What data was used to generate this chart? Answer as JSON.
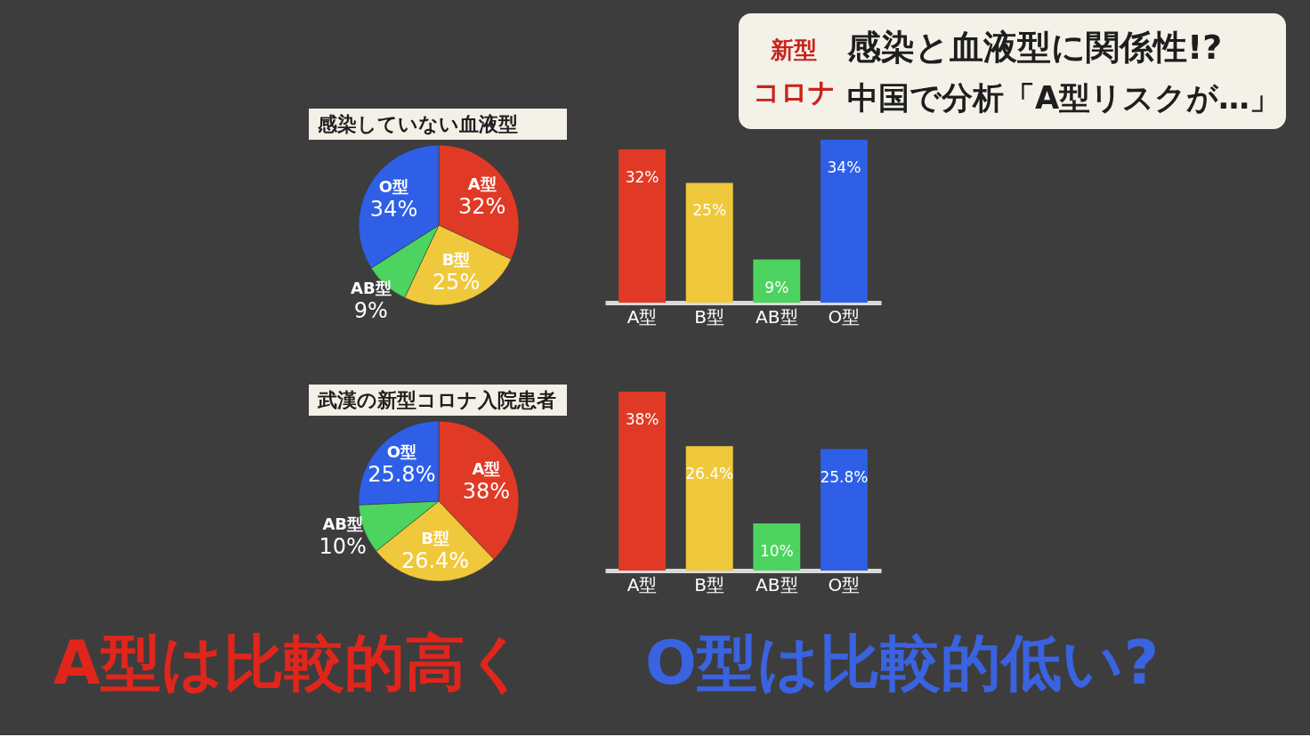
{
  "chart_data": [
    {
      "type": "other",
      "title": "感染と血液型に関係性!?",
      "subtitle": "中国で分析「A型リスクが…」",
      "annotations": [
        "新型",
        "コロナ"
      ]
    },
    {
      "type": "pie",
      "title": "感染していない血液型",
      "categories": [
        "A型",
        "B型",
        "AB型",
        "O型"
      ],
      "values": [
        32,
        25,
        9,
        34
      ],
      "colors": [
        "#e03a26",
        "#f0c83c",
        "#4dd35f",
        "#2e5fe6"
      ],
      "value_labels": [
        "32%",
        "25%",
        "9%",
        "34%"
      ]
    },
    {
      "type": "bar",
      "categories": [
        "A型",
        "B型",
        "AB型",
        "O型"
      ],
      "values": [
        32,
        25,
        9,
        34
      ],
      "colors": [
        "#e03a26",
        "#f0c83c",
        "#4dd35f",
        "#2e5fe6"
      ],
      "value_labels": [
        "32%",
        "25%",
        "9%",
        "34%"
      ]
    },
    {
      "type": "pie",
      "title": "武漢の新型コロナ入院患者",
      "categories": [
        "A型",
        "B型",
        "AB型",
        "O型"
      ],
      "values": [
        38,
        26.4,
        10,
        25.8
      ],
      "colors": [
        "#e03a26",
        "#f0c83c",
        "#4dd35f",
        "#2e5fe6"
      ],
      "value_labels": [
        "38%",
        "26.4%",
        "10%",
        "25.8%"
      ]
    },
    {
      "type": "bar",
      "categories": [
        "A型",
        "B型",
        "AB型",
        "O型"
      ],
      "values": [
        38,
        26.4,
        10,
        25.8
      ],
      "colors": [
        "#e03a26",
        "#f0c83c",
        "#4dd35f",
        "#2e5fe6"
      ],
      "value_labels": [
        "38%",
        "26.4%",
        "10%",
        "25.8%"
      ]
    },
    {
      "type": "other",
      "annotations": [
        "A型は比較的高く",
        "O型は比較的低い?"
      ]
    }
  ]
}
